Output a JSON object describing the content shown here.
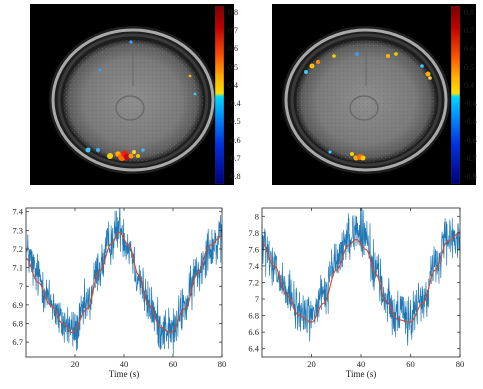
{
  "colorbar": {
    "ticks": [
      "0.8",
      "0.7",
      "0.6",
      "0.5",
      "0.4",
      "-0.4",
      "-0.5",
      "-0.6",
      "-0.7",
      "-0.8"
    ]
  },
  "chart_data": [
    {
      "type": "line",
      "xlabel": "Time (s)",
      "ylabel": "",
      "xlim": [
        0,
        80
      ],
      "ylim": [
        6.62,
        7.42
      ],
      "xticks": [
        20,
        40,
        60,
        80
      ],
      "yticks": [
        6.7,
        6.8,
        6.9,
        7.0,
        7.1,
        7.2,
        7.3,
        7.4
      ],
      "ytick_labels": [
        "6.7",
        "6.8",
        "6.9",
        "7",
        "7.1",
        "7.2",
        "7.3",
        "7.4"
      ],
      "grid": false,
      "series": [
        {
          "kind": "signal",
          "color": "#1f77b4"
        },
        {
          "kind": "fit",
          "color": "#d9472b"
        }
      ],
      "signal_samples": [
        [
          0,
          7.18
        ],
        [
          5,
          7.05
        ],
        [
          10,
          6.92
        ],
        [
          15,
          6.8
        ],
        [
          20,
          6.76
        ],
        [
          25,
          6.9
        ],
        [
          30,
          7.1
        ],
        [
          35,
          7.25
        ],
        [
          38,
          7.32
        ],
        [
          42,
          7.22
        ],
        [
          46,
          7.05
        ],
        [
          50,
          6.9
        ],
        [
          55,
          6.78
        ],
        [
          60,
          6.76
        ],
        [
          65,
          6.9
        ],
        [
          70,
          7.08
        ],
        [
          75,
          7.22
        ],
        [
          80,
          7.24
        ]
      ],
      "fit_samples": [
        [
          0,
          7.15
        ],
        [
          5,
          7.02
        ],
        [
          10,
          6.9
        ],
        [
          15,
          6.8
        ],
        [
          19,
          6.75
        ],
        [
          25,
          6.88
        ],
        [
          30,
          7.08
        ],
        [
          35,
          7.23
        ],
        [
          38,
          7.29
        ],
        [
          42,
          7.22
        ],
        [
          46,
          7.06
        ],
        [
          50,
          6.9
        ],
        [
          55,
          6.78
        ],
        [
          59,
          6.75
        ],
        [
          65,
          6.88
        ],
        [
          70,
          7.07
        ],
        [
          75,
          7.22
        ],
        [
          80,
          7.27
        ]
      ]
    },
    {
      "type": "line",
      "xlabel": "Time (s)",
      "ylabel": "",
      "xlim": [
        0,
        80
      ],
      "ylim": [
        6.3,
        8.1
      ],
      "xticks": [
        20,
        40,
        60,
        80
      ],
      "yticks": [
        6.4,
        6.6,
        6.8,
        7.0,
        7.2,
        7.4,
        7.6,
        7.8,
        8.0
      ],
      "ytick_labels": [
        "6.4",
        "6.6",
        "6.8",
        "7",
        "7.2",
        "7.4",
        "7.6",
        "7.8",
        "8"
      ],
      "grid": false,
      "series": [
        {
          "kind": "signal",
          "color": "#1f77b4"
        },
        {
          "kind": "fit",
          "color": "#d9472b"
        }
      ],
      "signal_samples": [
        [
          0,
          7.65
        ],
        [
          5,
          7.35
        ],
        [
          10,
          7.05
        ],
        [
          15,
          6.85
        ],
        [
          20,
          6.8
        ],
        [
          25,
          7.05
        ],
        [
          30,
          7.45
        ],
        [
          35,
          7.75
        ],
        [
          38,
          7.85
        ],
        [
          42,
          7.7
        ],
        [
          46,
          7.35
        ],
        [
          50,
          7.0
        ],
        [
          55,
          6.8
        ],
        [
          60,
          6.78
        ],
        [
          65,
          7.0
        ],
        [
          70,
          7.4
        ],
        [
          75,
          7.7
        ],
        [
          80,
          7.78
        ]
      ],
      "fit_samples": [
        [
          0,
          7.68
        ],
        [
          5,
          7.4
        ],
        [
          10,
          7.05
        ],
        [
          15,
          6.8
        ],
        [
          20,
          6.72
        ],
        [
          25,
          6.95
        ],
        [
          30,
          7.35
        ],
        [
          35,
          7.65
        ],
        [
          38,
          7.72
        ],
        [
          42,
          7.6
        ],
        [
          46,
          7.3
        ],
        [
          50,
          6.98
        ],
        [
          55,
          6.75
        ],
        [
          60,
          6.72
        ],
        [
          65,
          6.95
        ],
        [
          70,
          7.35
        ],
        [
          75,
          7.7
        ],
        [
          80,
          7.8
        ]
      ]
    }
  ]
}
